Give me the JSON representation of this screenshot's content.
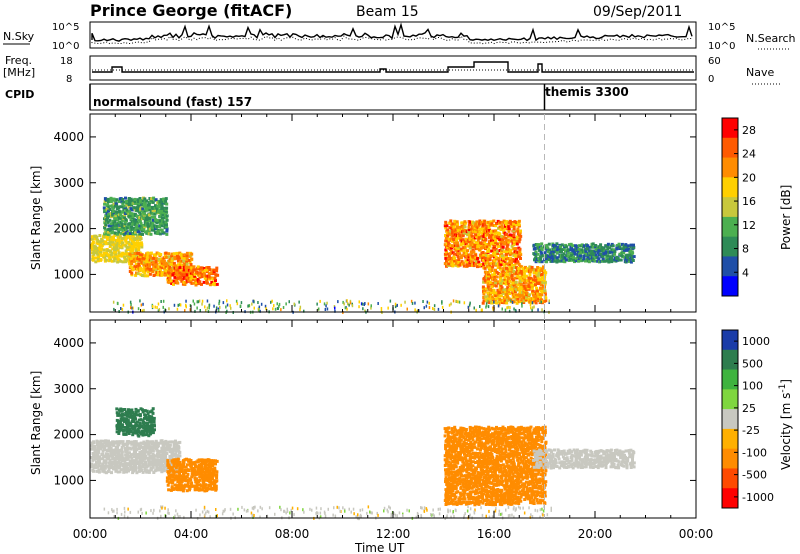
{
  "header": {
    "station": "Prince George (fitACF)",
    "beam": "Beam 15",
    "date": "09/Sep/2011"
  },
  "sky_panel": {
    "left_label": "N.Sky",
    "right_label": "N.Search",
    "left_ticks": [
      "10^5",
      "10^0"
    ],
    "right_ticks": [
      "10^5",
      "10^0"
    ]
  },
  "freq_panel": {
    "left_label_1": "Freq.",
    "left_label_2": "[MHz]",
    "right_label": "Nave",
    "left_ticks": [
      "18",
      "8"
    ],
    "right_ticks": [
      "60",
      "0"
    ]
  },
  "cpid_panel": {
    "label": "CPID",
    "programs": [
      {
        "name": "normalsound (fast) 157",
        "start_hour": 0
      },
      {
        "name": "themis 3300",
        "start_hour": 18.0
      }
    ]
  },
  "colors": {
    "power": [
      "#0000ff",
      "#1f4fa8",
      "#2e8b57",
      "#4caf50",
      "#c8c83c",
      "#ffd000",
      "#ff8c00",
      "#ff5a00",
      "#ff0000"
    ],
    "velocity": [
      "#1a3ca8",
      "#2e7d4f",
      "#3fb33f",
      "#7fd63f",
      "#c8c8c0",
      "#c8c8c0",
      "#ffb000",
      "#ff8c00",
      "#ff4a00",
      "#ff0000"
    ],
    "marker_line": "#b0b0b0"
  },
  "chart_data": [
    {
      "type": "heatmap",
      "title": "Power",
      "xlabel": "Time UT",
      "ylabel": "Slant Range [km]",
      "x_ticks": [
        "00:00",
        "04:00",
        "08:00",
        "12:00",
        "16:00",
        "20:00",
        "00:00"
      ],
      "xlim": [
        0,
        24
      ],
      "y_ticks": [
        1000,
        2000,
        3000,
        4000
      ],
      "ylim": [
        180,
        4500
      ],
      "colorbar": {
        "label": "Power [dB]",
        "ticks": [
          4,
          8,
          12,
          16,
          20,
          24,
          28
        ],
        "range": [
          0,
          30
        ]
      },
      "echo_regions": [
        {
          "t": [
            0.0,
            2.0
          ],
          "r": [
            1300,
            1900
          ],
          "v": [
            14,
            20
          ]
        },
        {
          "t": [
            1.5,
            4.0
          ],
          "r": [
            1000,
            1500
          ],
          "v": [
            16,
            26
          ]
        },
        {
          "t": [
            3.0,
            5.0
          ],
          "r": [
            800,
            1200
          ],
          "v": [
            18,
            28
          ]
        },
        {
          "t": [
            0.5,
            3.0
          ],
          "r": [
            1900,
            2700
          ],
          "v": [
            6,
            14
          ]
        },
        {
          "t": [
            14.0,
            17.0
          ],
          "r": [
            1200,
            2200
          ],
          "v": [
            16,
            28
          ]
        },
        {
          "t": [
            15.5,
            18.0
          ],
          "r": [
            400,
            1200
          ],
          "v": [
            16,
            26
          ]
        },
        {
          "t": [
            17.5,
            21.5
          ],
          "r": [
            1300,
            1700
          ],
          "v": [
            4,
            12
          ]
        }
      ]
    },
    {
      "type": "heatmap",
      "title": "Velocity",
      "xlabel": "Time UT",
      "ylabel": "Slant Range [km]",
      "x_ticks": [
        "00:00",
        "04:00",
        "08:00",
        "12:00",
        "16:00",
        "20:00",
        "00:00"
      ],
      "xlim": [
        0,
        24
      ],
      "y_ticks": [
        1000,
        2000,
        3000,
        4000
      ],
      "ylim": [
        180,
        4500
      ],
      "colorbar": {
        "label": "Velocity [m s^-1]",
        "ticks": [
          "1000",
          "500",
          "100",
          "25",
          "-25",
          "-100",
          "-500",
          "-1000"
        ]
      },
      "echo_regions": [
        {
          "t": [
            0.0,
            3.5
          ],
          "r": [
            1200,
            1900
          ],
          "v": [
            -20,
            20
          ]
        },
        {
          "t": [
            3.0,
            5.0
          ],
          "r": [
            800,
            1500
          ],
          "v": [
            -400,
            -100
          ]
        },
        {
          "t": [
            1.0,
            2.5
          ],
          "r": [
            2000,
            2600
          ],
          "v": [
            100,
            300
          ]
        },
        {
          "t": [
            14.0,
            18.0
          ],
          "r": [
            500,
            2200
          ],
          "v": [
            -500,
            -100
          ]
        },
        {
          "t": [
            17.5,
            21.5
          ],
          "r": [
            1300,
            1700
          ],
          "v": [
            -20,
            20
          ]
        }
      ]
    }
  ]
}
